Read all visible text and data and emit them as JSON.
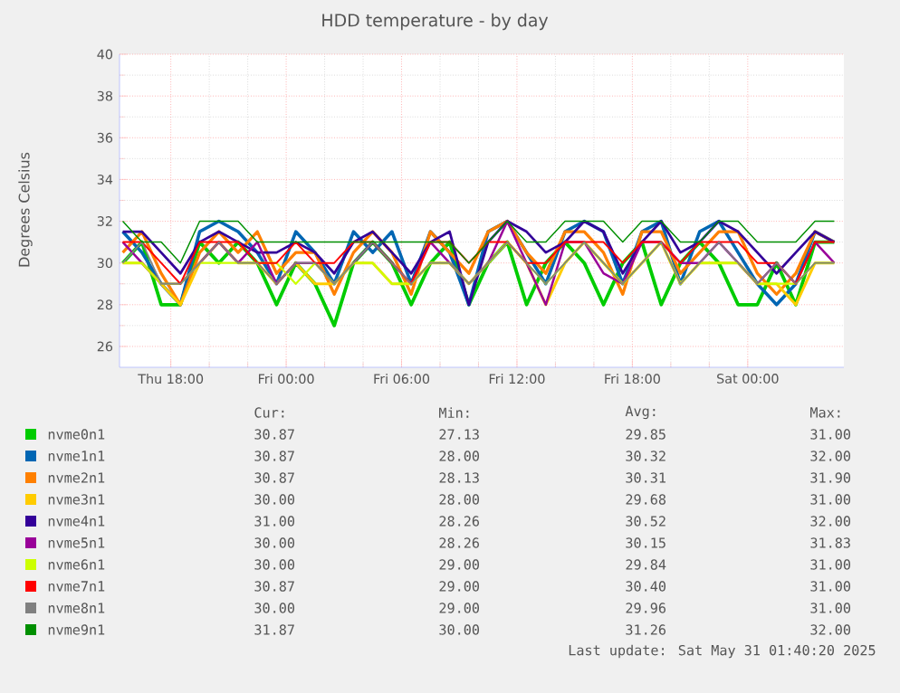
{
  "chart_data": {
    "type": "line",
    "title": "HDD temperature - by day",
    "ylabel": "Degrees Celsius",
    "x": [
      "2025-05-29T15:30",
      "2025-05-29T16:30",
      "2025-05-29T17:30",
      "2025-05-29T18:30",
      "2025-05-29T19:30",
      "2025-05-29T20:30",
      "2025-05-29T21:30",
      "2025-05-29T22:30",
      "2025-05-29T23:30",
      "2025-05-30T00:30",
      "2025-05-30T01:30",
      "2025-05-30T02:30",
      "2025-05-30T03:30",
      "2025-05-30T04:30",
      "2025-05-30T05:30",
      "2025-05-30T06:30",
      "2025-05-30T07:30",
      "2025-05-30T08:30",
      "2025-05-30T09:30",
      "2025-05-30T10:30",
      "2025-05-30T11:30",
      "2025-05-30T12:30",
      "2025-05-30T13:30",
      "2025-05-30T14:30",
      "2025-05-30T15:30",
      "2025-05-30T16:30",
      "2025-05-30T17:30",
      "2025-05-30T18:30",
      "2025-05-30T19:30",
      "2025-05-30T20:30",
      "2025-05-30T21:30",
      "2025-05-30T22:30",
      "2025-05-30T23:30",
      "2025-05-31T00:30",
      "2025-05-31T01:30",
      "2025-05-31T02:30",
      "2025-05-31T03:30",
      "2025-05-31T04:30"
    ],
    "xlim": [
      "2025-05-29T15:20",
      "2025-05-31T05:00"
    ],
    "ylim": [
      25,
      40
    ],
    "xticks": [
      {
        "value": "2025-05-29T18:00",
        "label": "Thu 18:00"
      },
      {
        "value": "2025-05-30T00:00",
        "label": "Fri 00:00"
      },
      {
        "value": "2025-05-30T06:00",
        "label": "Fri 06:00"
      },
      {
        "value": "2025-05-30T12:00",
        "label": "Fri 12:00"
      },
      {
        "value": "2025-05-30T18:00",
        "label": "Fri 18:00"
      },
      {
        "value": "2025-05-31T00:00",
        "label": "Sat 00:00"
      }
    ],
    "yticks": [
      26,
      28,
      30,
      32,
      34,
      36,
      38,
      40
    ],
    "grid": true,
    "legend": "bottom",
    "marker": "none",
    "line_style": "solid",
    "series": [
      {
        "name": "nvme0n1",
        "color": "#00cc00",
        "values": [
          30,
          31,
          28,
          28,
          31,
          30,
          31,
          30,
          28,
          30,
          29,
          27,
          30,
          31,
          30,
          28,
          30,
          31,
          28,
          30,
          31,
          28,
          30,
          31,
          30,
          28,
          30,
          31,
          28,
          30,
          31,
          30,
          28,
          28,
          30,
          28,
          31,
          31
        ]
      },
      {
        "name": "nvme1n1",
        "color": "#0066b3",
        "values": [
          31.5,
          30.5,
          29,
          28,
          31.5,
          32,
          31.5,
          30.5,
          29,
          31.5,
          30.5,
          29,
          31.5,
          30.5,
          31.5,
          29,
          31.5,
          30.5,
          28,
          31.5,
          32,
          30.5,
          29,
          31.5,
          32,
          31.5,
          29,
          31.5,
          32,
          29,
          31.5,
          32,
          30.5,
          29,
          28,
          29,
          31.5,
          31
        ]
      },
      {
        "name": "nvme2n1",
        "color": "#ff8000",
        "values": [
          30.5,
          31.5,
          29.5,
          28,
          30.5,
          31.5,
          30.5,
          31.5,
          29.5,
          30.5,
          30.5,
          28.5,
          30.5,
          31.5,
          30.5,
          28.5,
          31.5,
          30.5,
          29.5,
          31.5,
          32,
          30.5,
          29.5,
          31.5,
          31.5,
          30.5,
          28.5,
          31.5,
          31.5,
          29.5,
          30.5,
          31.5,
          31.5,
          29.5,
          28.5,
          29.5,
          31.5,
          31
        ]
      },
      {
        "name": "nvme3n1",
        "color": "#ffcc00",
        "values": [
          30,
          30,
          29,
          28,
          30,
          31,
          30,
          30,
          29,
          30,
          29,
          29,
          30,
          30,
          29,
          29,
          30,
          30,
          29,
          30,
          31,
          30,
          28,
          30,
          31,
          30,
          29,
          30,
          31,
          29,
          30,
          30,
          30,
          29,
          29,
          28,
          30,
          30
        ]
      },
      {
        "name": "nvme4n1",
        "color": "#330099",
        "values": [
          31.5,
          31.5,
          30.5,
          29.5,
          31,
          31.5,
          31,
          30.5,
          30.5,
          31,
          30.5,
          29.5,
          31,
          31.5,
          30.5,
          29.5,
          31,
          31.5,
          28,
          31,
          32,
          31.5,
          30.5,
          31,
          32,
          31.5,
          29.5,
          31,
          32,
          30.5,
          31,
          32,
          31.5,
          30.5,
          29.5,
          30.5,
          31.5,
          31
        ]
      },
      {
        "name": "nvme5n1",
        "color": "#990099",
        "values": [
          31,
          30,
          29,
          29,
          30,
          31,
          30,
          31,
          29,
          30,
          30,
          29,
          30,
          31,
          30,
          29,
          31,
          30,
          29,
          30,
          32,
          30,
          28,
          31,
          31,
          29.5,
          29,
          31,
          31,
          30,
          30,
          31,
          30,
          29,
          30,
          29,
          31,
          30
        ]
      },
      {
        "name": "nvme6n1",
        "color": "#ccff00",
        "values": [
          30,
          30,
          29,
          29,
          30,
          30,
          30,
          30,
          30,
          29,
          30,
          29,
          30,
          30,
          29,
          29,
          30,
          30,
          29,
          30,
          31,
          30,
          29,
          30,
          31,
          30,
          29,
          30,
          31,
          29,
          30,
          30,
          30,
          29,
          29,
          29,
          30,
          30
        ]
      },
      {
        "name": "nvme7n1",
        "color": "#ff0000",
        "values": [
          31,
          31,
          30,
          29,
          31,
          31,
          31,
          30,
          30,
          31,
          30,
          30,
          31,
          31,
          30,
          29,
          31,
          31,
          30,
          31,
          31,
          30,
          30,
          31,
          31,
          31,
          30,
          31,
          31,
          30,
          31,
          31,
          31,
          30,
          30,
          29,
          31,
          31
        ]
      },
      {
        "name": "nvme8n1",
        "color": "#808080",
        "values": [
          30,
          31,
          29,
          29,
          30,
          31,
          30,
          30,
          29,
          30,
          30,
          29,
          30,
          31,
          30,
          29,
          30,
          30,
          29,
          30,
          31,
          30,
          29,
          30,
          31,
          30,
          29,
          30,
          31,
          29,
          30,
          31,
          30,
          29,
          30,
          29,
          30,
          30
        ]
      },
      {
        "name": "nvme9n1",
        "color": "#008f00",
        "values": [
          32,
          31,
          31,
          30,
          32,
          32,
          32,
          31,
          31,
          31,
          31,
          31,
          31,
          31,
          31,
          31,
          31,
          31,
          30,
          31,
          32,
          31,
          31,
          32,
          32,
          32,
          31,
          32,
          32,
          31,
          31,
          32,
          32,
          31,
          31,
          31,
          32,
          32
        ]
      }
    ],
    "annotations": [
      "Cur:",
      "Min:",
      "Avg:",
      "Max:",
      "30.87",
      "27.13",
      "29.85",
      "31.00",
      "30.87",
      "28.00",
      "30.32",
      "32.00",
      "30.87",
      "28.13",
      "30.31",
      "31.90",
      "30.00",
      "28.00",
      "29.68",
      "31.00",
      "31.00",
      "28.26",
      "30.52",
      "32.00",
      "30.00",
      "28.26",
      "30.15",
      "31.83",
      "30.00",
      "29.00",
      "29.84",
      "31.00",
      "30.87",
      "29.00",
      "30.40",
      "31.00",
      "30.00",
      "29.00",
      "29.96",
      "31.00",
      "31.87",
      "30.00",
      "31.26",
      "32.00",
      "Last update: Sat May 31 01:40:20 2025"
    ]
  }
}
